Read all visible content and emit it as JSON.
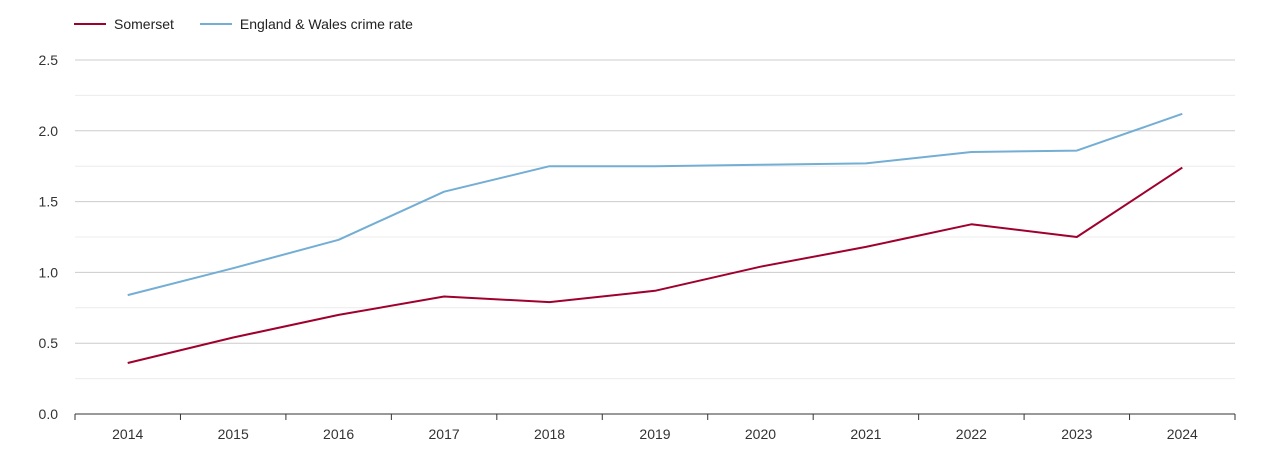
{
  "chart_data": {
    "type": "line",
    "title": "",
    "xlabel": "",
    "ylabel": "",
    "x": [
      "2014",
      "2015",
      "2016",
      "2017",
      "2018",
      "2019",
      "2020",
      "2021",
      "2022",
      "2023",
      "2024"
    ],
    "ylim": [
      0,
      2.5
    ],
    "yticks": [
      "0.0",
      "0.5",
      "1.0",
      "1.5",
      "2.0",
      "2.5"
    ],
    "grid": true,
    "legend_position": "top-left",
    "series": [
      {
        "name": "Somerset",
        "color": "#a0002d",
        "values": [
          0.36,
          0.54,
          0.7,
          0.83,
          0.79,
          0.87,
          1.04,
          1.18,
          1.34,
          1.25,
          1.74
        ]
      },
      {
        "name": "England & Wales crime rate",
        "color": "#74aed4",
        "values": [
          0.84,
          1.03,
          1.23,
          1.57,
          1.75,
          1.75,
          1.76,
          1.77,
          1.85,
          1.86,
          2.12
        ]
      }
    ]
  }
}
